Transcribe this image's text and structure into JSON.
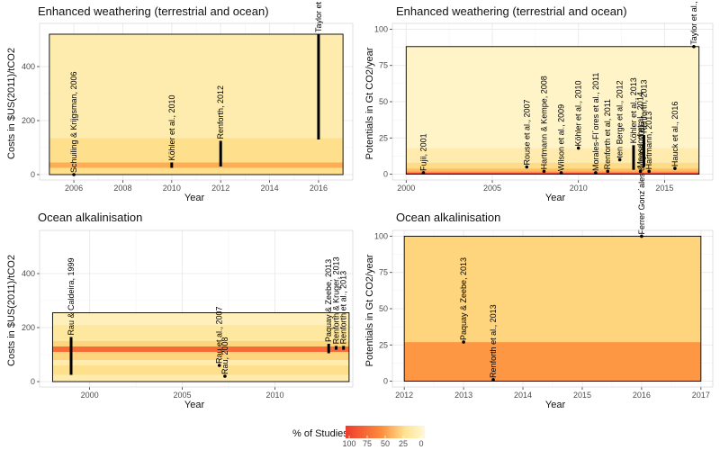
{
  "chart_data": [
    {
      "type": "bar",
      "title": "Enhanced weathering (terrestrial and ocean)",
      "xlabel": "Year",
      "ylabel": "Costs in $US(2011)/tCO2",
      "xlim": [
        2004.6,
        2017.4
      ],
      "ylim": [
        -20,
        560
      ],
      "xticks": [
        2006,
        2008,
        2010,
        2012,
        2014,
        2016
      ],
      "yticks": [
        0,
        200,
        400
      ],
      "band_range": [
        0,
        520
      ],
      "band_x": [
        2005,
        2017
      ],
      "bands": [
        {
          "y0": 0,
          "y1": 25,
          "pct": 28
        },
        {
          "y0": 25,
          "y1": 45,
          "pct": 58
        },
        {
          "y0": 45,
          "y1": 135,
          "pct": 28
        },
        {
          "y0": 135,
          "y1": 520,
          "pct": 14
        }
      ],
      "studies": [
        {
          "label": "Schuiling & Krijgsman, 2006",
          "x": 2006,
          "y": [
            0,
            0
          ]
        },
        {
          "label": "Köhler et al., 2010",
          "x": 2010,
          "y": [
            25,
            45
          ]
        },
        {
          "label": "Renforth, 2012",
          "x": 2012,
          "y": [
            30,
            125
          ]
        },
        {
          "label": "Taylor et al., 2016",
          "x": 2016,
          "y": [
            130,
            520
          ]
        }
      ]
    },
    {
      "type": "bar",
      "title": "Enhanced weathering (terrestrial and ocean)",
      "xlabel": "Year",
      "ylabel": "Potentials in Gt CO2/year",
      "xlim": [
        1999.2,
        2017.8
      ],
      "ylim": [
        -4,
        104
      ],
      "xticks": [
        2000,
        2005,
        2010,
        2015
      ],
      "yticks": [
        0,
        25,
        50,
        75,
        100
      ],
      "band_range": [
        0,
        88
      ],
      "band_x": [
        2000,
        2017
      ],
      "bands": [
        {
          "y0": 0,
          "y1": 1,
          "pct": 95
        },
        {
          "y0": 1,
          "y1": 2,
          "pct": 75
        },
        {
          "y0": 2,
          "y1": 4,
          "pct": 50
        },
        {
          "y0": 4,
          "y1": 8,
          "pct": 30
        },
        {
          "y0": 8,
          "y1": 18,
          "pct": 15
        },
        {
          "y0": 18,
          "y1": 88,
          "pct": 5
        }
      ],
      "studies": [
        {
          "label": "Fujii, 2001",
          "x": 2001,
          "y": [
            1,
            1
          ]
        },
        {
          "label": "Rouse et al., 2007",
          "x": 2007,
          "y": [
            5,
            5
          ]
        },
        {
          "label": "Hartmann & Kempe, 2008",
          "x": 2008,
          "y": [
            2,
            2
          ]
        },
        {
          "label": "Wilson et al., 2009",
          "x": 2009,
          "y": [
            1,
            1
          ]
        },
        {
          "label": "Köhler et al., 2010",
          "x": 2010,
          "y": [
            18,
            18
          ]
        },
        {
          "label": "Morales-Fl´ores et al., 2011",
          "x": 2011,
          "y": [
            1,
            1
          ]
        },
        {
          "label": "Renforth et al, 2011",
          "x": 2011.7,
          "y": [
            2,
            2
          ]
        },
        {
          "label": "ten Berge et al., 2012",
          "x": 2012.4,
          "y": [
            10,
            10
          ]
        },
        {
          "label": "Köhler et al., 2013",
          "x": 2013.2,
          "y": [
            3,
            20
          ]
        },
        {
          "label": "Moosdorf et al., 2014",
          "x": 2013.6,
          "y": [
            2,
            3
          ]
        },
        {
          "label": "Renforth, 2013",
          "x": 2013.8,
          "y": [
            5,
            27
          ]
        },
        {
          "label": "Hartmann, 2013",
          "x": 2014.1,
          "y": [
            2,
            2
          ]
        },
        {
          "label": "Hauck et al., 2016",
          "x": 2015.6,
          "y": [
            4,
            4
          ]
        },
        {
          "label": "Taylor et al., 2016",
          "x": 2016.7,
          "y": [
            88,
            88
          ]
        }
      ]
    },
    {
      "type": "bar",
      "title": "Ocean alkalinisation",
      "xlabel": "Year",
      "ylabel": "Costs in $US(2011)/tCO2",
      "xlim": [
        1997.3,
        2014.2
      ],
      "ylim": [
        -20,
        560
      ],
      "xticks": [
        2000,
        2005,
        2010
      ],
      "yticks": [
        0,
        200,
        400
      ],
      "band_range": [
        0,
        255
      ],
      "band_x": [
        1998,
        2014
      ],
      "bands": [
        {
          "y0": 0,
          "y1": 25,
          "pct": 15
        },
        {
          "y0": 25,
          "y1": 60,
          "pct": 28
        },
        {
          "y0": 60,
          "y1": 80,
          "pct": 15
        },
        {
          "y0": 80,
          "y1": 110,
          "pct": 35
        },
        {
          "y0": 110,
          "y1": 130,
          "pct": 85
        },
        {
          "y0": 130,
          "y1": 150,
          "pct": 35
        },
        {
          "y0": 150,
          "y1": 210,
          "pct": 20
        },
        {
          "y0": 210,
          "y1": 255,
          "pct": 10
        }
      ],
      "studies": [
        {
          "label": "Rau & Caldeira, 1999",
          "x": 1999,
          "y": [
            25,
            165
          ]
        },
        {
          "label": "Rau et al., 2007",
          "x": 2007,
          "y": [
            60,
            60
          ]
        },
        {
          "label": "Rau, 2008",
          "x": 2007.3,
          "y": [
            20,
            20
          ]
        },
        {
          "label": "Paquay & Zeebe, 2013",
          "x": 2012.9,
          "y": [
            105,
            140
          ]
        },
        {
          "label": "Renforth & Kruger, 2013",
          "x": 2013.3,
          "y": [
            118,
            132
          ]
        },
        {
          "label": "Renforth et al., 2013",
          "x": 2013.7,
          "y": [
            118,
            132
          ]
        }
      ]
    },
    {
      "type": "bar",
      "title": "Ocean alkalinisation",
      "xlabel": "Year",
      "ylabel": "Potentials in Gt CO2/year",
      "xlim": [
        2011.8,
        2017.2
      ],
      "ylim": [
        -4,
        104
      ],
      "xticks": [
        2012,
        2013,
        2014,
        2015,
        2016,
        2017
      ],
      "yticks": [
        0,
        25,
        50,
        75,
        100
      ],
      "band_range": [
        0,
        100
      ],
      "band_x": [
        2012,
        2017
      ],
      "bands": [
        {
          "y0": 0,
          "y1": 27,
          "pct": 70
        },
        {
          "y0": 27,
          "y1": 100,
          "pct": 35
        }
      ],
      "studies": [
        {
          "label": "Paquay & Zeebe, 2013",
          "x": 2013,
          "y": [
            27,
            27
          ]
        },
        {
          "label": "Renforth et al., 2013",
          "x": 2013.5,
          "y": [
            1,
            1
          ]
        },
        {
          "label": "Ferrer Gonz´ales & Ilyina, 2016",
          "x": 2016,
          "y": [
            100,
            100
          ]
        }
      ]
    }
  ],
  "legend": {
    "title": "% of Studies",
    "ticks": [
      "100",
      "75",
      "50",
      "25",
      "0"
    ],
    "colors": {
      "high": "#ef3b2c",
      "mid": "#fd8d3c",
      "low": "#fee391",
      "zero": "#fff7d6"
    }
  },
  "colors": {
    "panel_bg": "#ffffff",
    "grid": "#ebebeb",
    "marker": "#000000",
    "panel_border": "#333333"
  }
}
